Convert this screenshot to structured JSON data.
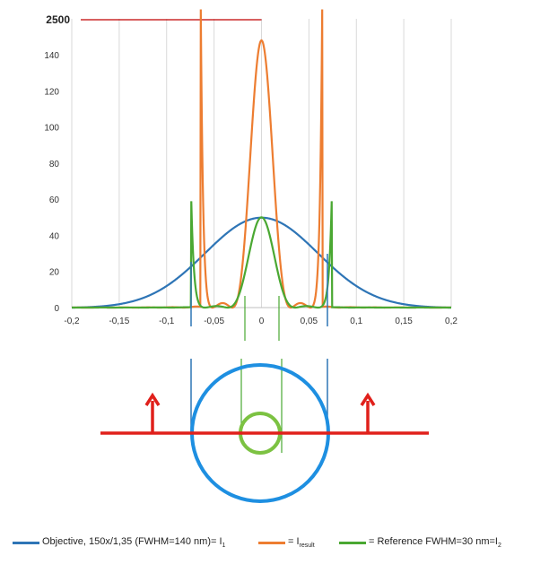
{
  "chart_data": {
    "type": "line",
    "title": "",
    "xlabel": "",
    "ylabel": "",
    "xlim": [
      -0.2,
      0.2
    ],
    "ylim": [
      0,
      150
    ],
    "x_ticks": [
      "-0,2",
      "-0,15",
      "-0,1",
      "-0,05",
      "0",
      "0,05",
      "0,1",
      "0,15",
      "0,2"
    ],
    "y_ticks": [
      "0",
      "20",
      "40",
      "60",
      "80",
      "100",
      "120",
      "140"
    ],
    "y_top_label": "2500",
    "grid": "vertical",
    "series": [
      {
        "key": "objective",
        "color": "#2e75b6",
        "peak": 50,
        "fwhm": 0.14,
        "shape": "gaussian"
      },
      {
        "key": "result",
        "color": "#ed7d31",
        "peak": 148,
        "fwhm": 0.026,
        "shape": "airy"
      },
      {
        "key": "reference",
        "color": "#4aa832",
        "peak": 50,
        "fwhm": 0.03,
        "shape": "airy"
      }
    ],
    "x_values": [
      -0.2,
      -0.15,
      -0.1,
      -0.075,
      -0.05,
      -0.03,
      -0.015,
      0,
      0.015,
      0.03,
      0.05,
      0.075,
      0.1,
      0.15,
      0.2
    ],
    "y_values": {
      "objective": [
        0.2,
        2.9,
        12.2,
        18.1,
        29.1,
        39.0,
        46.3,
        50.0,
        46.3,
        39.0,
        29.1,
        18.1,
        12.2,
        2.9,
        0.2
      ],
      "result": [
        0,
        0,
        0,
        0,
        2.5,
        0,
        30,
        148,
        30,
        0,
        2.5,
        0,
        0,
        0,
        0
      ],
      "reference": [
        0,
        0,
        0,
        0,
        0.5,
        0,
        18,
        50,
        18,
        0,
        0.5,
        0,
        0,
        0,
        0
      ]
    }
  },
  "legend": {
    "objective_text": "Objective, 150x/1,35 (FWHM=140 nm)= I",
    "objective_sub": "1",
    "result_text": "= I",
    "result_sub": "result",
    "reference_text": "= Reference  FWHM=30 nm=I",
    "reference_sub": "2"
  },
  "colors": {
    "objective": "#2e75b6",
    "result": "#ed7d31",
    "reference": "#4aa832",
    "diagram_axis": "#e0201b",
    "diagram_outer_circle": "#1e8fe1",
    "diagram_inner_circle": "#7cc242"
  }
}
